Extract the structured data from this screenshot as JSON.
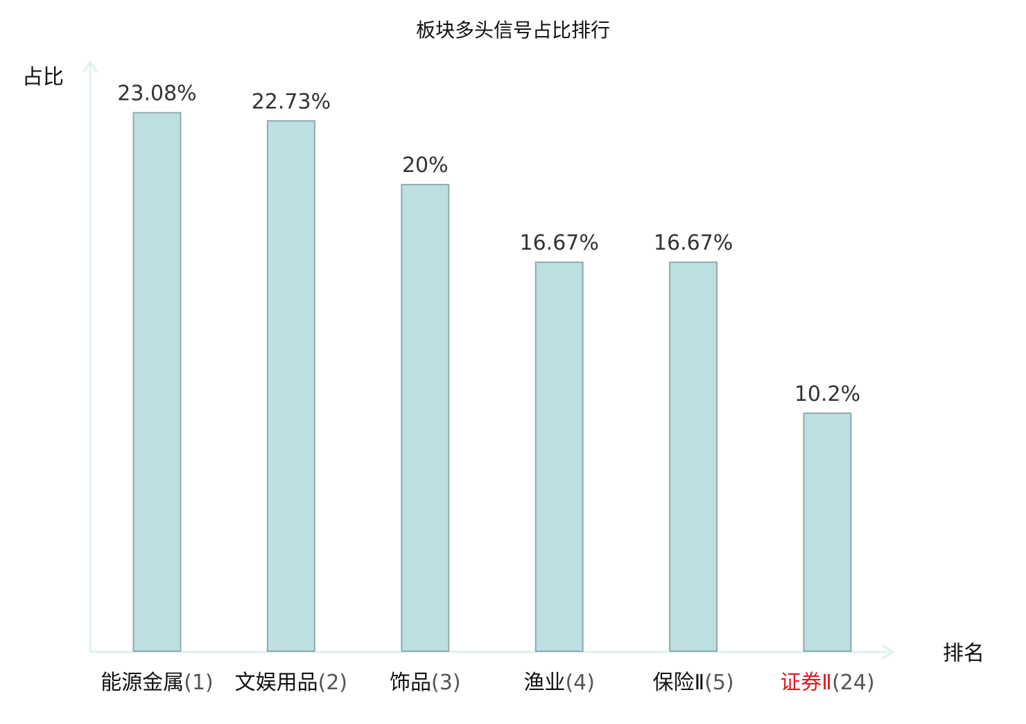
{
  "chart_data": {
    "type": "bar",
    "title": "板块多头信号占比排行",
    "ylabel": "占比",
    "xlabel": "排名",
    "categories": [
      "能源金属",
      "文娱用品",
      "饰品",
      "渔业",
      "保险Ⅱ",
      "证券Ⅱ"
    ],
    "ranks": [
      "(1)",
      "(2)",
      "(3)",
      "(4)",
      "(5)",
      "(24)"
    ],
    "values": [
      23.08,
      22.73,
      20,
      16.67,
      16.67,
      10.2
    ],
    "value_labels": [
      "23.08%",
      "22.73%",
      "20%",
      "16.67%",
      "16.67%",
      "10.2%"
    ],
    "highlight_index": 5,
    "ylim": [
      0,
      25
    ],
    "grid": false,
    "legend": "none"
  },
  "colors": {
    "bar_fill": "#bce0e2",
    "bar_stroke": "#8faaad",
    "axis": "#dff1ef",
    "highlight_text": "#e0191f",
    "label_text": "#111111",
    "value_text": "#333333"
  }
}
